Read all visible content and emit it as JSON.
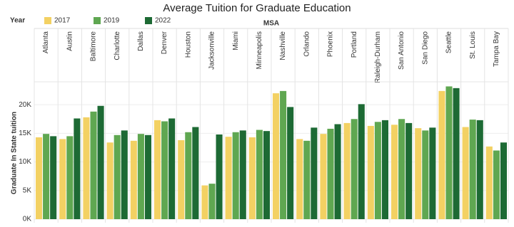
{
  "chart_data": {
    "type": "bar",
    "title": "Average Tuition for Graduate Education",
    "legend_title": "Year",
    "column_header": "MSA",
    "y_label": "Graduate In State tuition",
    "categories": [
      "Atlanta",
      "Austin",
      "Baltimore",
      "Charlotte",
      "Dallas",
      "Denver",
      "Houston",
      "Jacksonville",
      "Miami",
      "Minneapolis",
      "Nashville",
      "Orlando",
      "Phoenix",
      "Portland",
      "Raleigh-Durham",
      "San Antonio",
      "San Diego",
      "Seattle",
      "St. Louis",
      "Tampa Bay"
    ],
    "series": [
      {
        "name": "2017",
        "color": "#f3d163",
        "values": [
          14300,
          14000,
          17800,
          13400,
          13700,
          17300,
          13800,
          5900,
          14400,
          14300,
          22000,
          14000,
          14900,
          16800,
          16300,
          16500,
          15900,
          22400,
          16100,
          12700
        ]
      },
      {
        "name": "2019",
        "color": "#5fa751",
        "values": [
          14900,
          14500,
          18800,
          14700,
          14900,
          17100,
          15200,
          6200,
          15200,
          15600,
          22400,
          13700,
          15800,
          17500,
          17000,
          17500,
          15500,
          23200,
          17400,
          12000
        ]
      },
      {
        "name": "2022",
        "color": "#1d6a34",
        "values": [
          14500,
          17600,
          19800,
          15500,
          14700,
          17600,
          16100,
          14800,
          15500,
          15400,
          19600,
          16000,
          16600,
          20100,
          17300,
          16800,
          16000,
          22900,
          17300,
          13400
        ]
      }
    ],
    "ylim": [
      0,
      24000
    ],
    "yticks": [
      {
        "value": 0,
        "label": "0K"
      },
      {
        "value": 5000,
        "label": "5K"
      },
      {
        "value": 10000,
        "label": "10K"
      },
      {
        "value": 15000,
        "label": "15K"
      },
      {
        "value": 20000,
        "label": "20K"
      }
    ],
    "grid": true
  }
}
